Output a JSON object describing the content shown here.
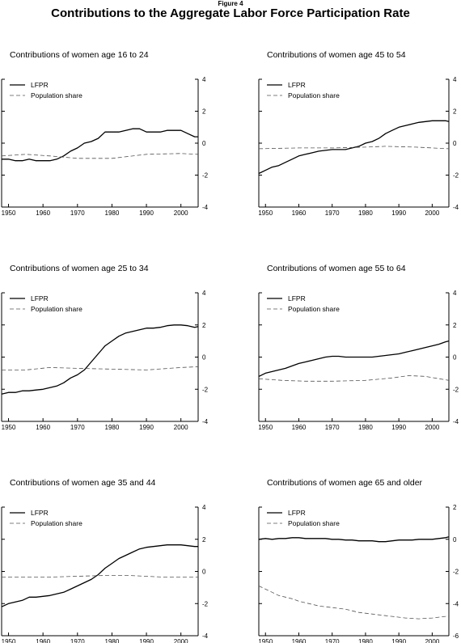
{
  "figure": {
    "label": "Figure 4",
    "title": "Contributions to the Aggregate Labor Force Participation Rate"
  },
  "chart_data": [
    {
      "type": "line",
      "title": "Contributions of women age 16 to 24",
      "ylim": [
        -4,
        4
      ],
      "yticks": [
        4,
        2,
        0,
        -2,
        -4
      ],
      "xlim": [
        1948,
        2005
      ],
      "xticks": [
        1950,
        1960,
        1970,
        1980,
        1990,
        2000
      ],
      "legend_position": "top-left",
      "grid": false,
      "series": [
        {
          "name": "LFPR",
          "style": "solid",
          "x": [
            1948,
            1950,
            1952,
            1954,
            1956,
            1958,
            1960,
            1962,
            1964,
            1966,
            1968,
            1970,
            1972,
            1974,
            1976,
            1978,
            1980,
            1982,
            1984,
            1986,
            1988,
            1990,
            1992,
            1994,
            1996,
            1998,
            2000,
            2002,
            2004,
            2005
          ],
          "y": [
            -1.0,
            -1.0,
            -1.1,
            -1.1,
            -1.0,
            -1.1,
            -1.1,
            -1.1,
            -1.0,
            -0.8,
            -0.5,
            -0.3,
            0.0,
            0.1,
            0.3,
            0.7,
            0.7,
            0.7,
            0.8,
            0.9,
            0.9,
            0.7,
            0.7,
            0.7,
            0.8,
            0.8,
            0.8,
            0.6,
            0.4,
            0.4
          ]
        },
        {
          "name": "Population share",
          "style": "dashed",
          "x": [
            1948,
            1955,
            1962,
            1970,
            1980,
            1990,
            2000,
            2005
          ],
          "y": [
            -0.8,
            -0.7,
            -0.8,
            -0.95,
            -0.95,
            -0.7,
            -0.65,
            -0.7
          ]
        }
      ]
    },
    {
      "type": "line",
      "title": "Contributions of women age 45 to 54",
      "ylim": [
        -4,
        4
      ],
      "yticks": [
        4,
        2,
        0,
        -2,
        -4
      ],
      "xlim": [
        1948,
        2005
      ],
      "xticks": [
        1950,
        1960,
        1970,
        1980,
        1990,
        2000
      ],
      "legend_position": "top-left",
      "grid": false,
      "series": [
        {
          "name": "LFPR",
          "style": "solid",
          "x": [
            1948,
            1950,
            1952,
            1954,
            1956,
            1958,
            1960,
            1962,
            1964,
            1966,
            1968,
            1970,
            1972,
            1974,
            1976,
            1978,
            1980,
            1982,
            1984,
            1986,
            1988,
            1990,
            1992,
            1994,
            1996,
            1998,
            2000,
            2002,
            2004,
            2005
          ],
          "y": [
            -1.9,
            -1.7,
            -1.5,
            -1.4,
            -1.2,
            -1.0,
            -0.8,
            -0.7,
            -0.6,
            -0.5,
            -0.45,
            -0.4,
            -0.4,
            -0.4,
            -0.3,
            -0.2,
            0.0,
            0.1,
            0.3,
            0.6,
            0.8,
            1.0,
            1.1,
            1.2,
            1.3,
            1.35,
            1.4,
            1.4,
            1.4,
            1.35
          ]
        },
        {
          "name": "Population share",
          "style": "dashed",
          "x": [
            1948,
            1960,
            1970,
            1980,
            1986,
            1995,
            2005
          ],
          "y": [
            -0.35,
            -0.3,
            -0.3,
            -0.25,
            -0.2,
            -0.25,
            -0.35
          ]
        }
      ]
    },
    {
      "type": "line",
      "title": "Contributions of women age 25 to 34",
      "ylim": [
        -4,
        4
      ],
      "yticks": [
        4,
        2,
        0,
        -2,
        -4
      ],
      "xlim": [
        1948,
        2005
      ],
      "xticks": [
        1950,
        1960,
        1970,
        1980,
        1990,
        2000
      ],
      "legend_position": "top-left",
      "grid": false,
      "series": [
        {
          "name": "LFPR",
          "style": "solid",
          "x": [
            1948,
            1950,
            1952,
            1954,
            1956,
            1958,
            1960,
            1962,
            1964,
            1966,
            1968,
            1970,
            1972,
            1974,
            1976,
            1978,
            1980,
            1982,
            1984,
            1986,
            1988,
            1990,
            1992,
            1994,
            1996,
            1998,
            2000,
            2002,
            2004,
            2005
          ],
          "y": [
            -2.3,
            -2.2,
            -2.2,
            -2.1,
            -2.1,
            -2.05,
            -2.0,
            -1.9,
            -1.8,
            -1.6,
            -1.3,
            -1.1,
            -0.8,
            -0.3,
            0.2,
            0.7,
            1.0,
            1.3,
            1.5,
            1.6,
            1.7,
            1.8,
            1.8,
            1.85,
            1.95,
            2.0,
            2.0,
            1.95,
            1.85,
            1.9
          ]
        },
        {
          "name": "Population share",
          "style": "dashed",
          "x": [
            1948,
            1955,
            1962,
            1970,
            1980,
            1990,
            2000,
            2005
          ],
          "y": [
            -0.8,
            -0.8,
            -0.65,
            -0.7,
            -0.75,
            -0.8,
            -0.65,
            -0.6
          ]
        }
      ]
    },
    {
      "type": "line",
      "title": "Contributions of women age 55 to 64",
      "ylim": [
        -4,
        4
      ],
      "yticks": [
        4,
        2,
        0,
        -2,
        -4
      ],
      "xlim": [
        1948,
        2005
      ],
      "xticks": [
        1950,
        1960,
        1970,
        1980,
        1990,
        2000
      ],
      "legend_position": "top-left",
      "grid": false,
      "series": [
        {
          "name": "LFPR",
          "style": "solid",
          "x": [
            1948,
            1950,
            1952,
            1954,
            1956,
            1958,
            1960,
            1962,
            1964,
            1966,
            1968,
            1970,
            1972,
            1974,
            1976,
            1978,
            1980,
            1982,
            1984,
            1986,
            1988,
            1990,
            1992,
            1994,
            1996,
            1998,
            2000,
            2002,
            2004,
            2005
          ],
          "y": [
            -1.2,
            -1.0,
            -0.9,
            -0.8,
            -0.7,
            -0.55,
            -0.4,
            -0.3,
            -0.2,
            -0.1,
            0.0,
            0.05,
            0.05,
            0.0,
            0.0,
            0.0,
            0.0,
            0.0,
            0.05,
            0.1,
            0.15,
            0.2,
            0.3,
            0.4,
            0.5,
            0.6,
            0.7,
            0.8,
            0.95,
            1.0
          ]
        },
        {
          "name": "Population share",
          "style": "dashed",
          "x": [
            1948,
            1955,
            1962,
            1970,
            1980,
            1988,
            1993,
            1998,
            2005
          ],
          "y": [
            -1.35,
            -1.45,
            -1.5,
            -1.5,
            -1.45,
            -1.3,
            -1.15,
            -1.2,
            -1.45
          ]
        }
      ]
    },
    {
      "type": "line",
      "title": "Contributions of women age 35 and 44",
      "ylim": [
        -4,
        4
      ],
      "yticks": [
        4,
        2,
        0,
        -2,
        -4
      ],
      "xlim": [
        1948,
        2005
      ],
      "xticks": [
        1950,
        1960,
        1970,
        1980,
        1990,
        2000
      ],
      "legend_position": "top-left",
      "grid": false,
      "series": [
        {
          "name": "LFPR",
          "style": "solid",
          "x": [
            1948,
            1950,
            1952,
            1954,
            1956,
            1958,
            1960,
            1962,
            1964,
            1966,
            1968,
            1970,
            1972,
            1974,
            1976,
            1978,
            1980,
            1982,
            1984,
            1986,
            1988,
            1990,
            1992,
            1994,
            1996,
            1998,
            2000,
            2002,
            2004,
            2005
          ],
          "y": [
            -2.2,
            -2.0,
            -1.9,
            -1.8,
            -1.6,
            -1.6,
            -1.55,
            -1.5,
            -1.4,
            -1.3,
            -1.1,
            -0.9,
            -0.7,
            -0.5,
            -0.2,
            0.2,
            0.5,
            0.8,
            1.0,
            1.2,
            1.4,
            1.5,
            1.55,
            1.6,
            1.65,
            1.65,
            1.65,
            1.6,
            1.55,
            1.55
          ]
        },
        {
          "name": "Population share",
          "style": "dashed",
          "x": [
            1948,
            1955,
            1962,
            1970,
            1978,
            1985,
            1995,
            2005
          ],
          "y": [
            -0.35,
            -0.35,
            -0.35,
            -0.3,
            -0.25,
            -0.25,
            -0.35,
            -0.35
          ]
        }
      ]
    },
    {
      "type": "line",
      "title": "Contributions of women age 65 and older",
      "ylim": [
        -6,
        2
      ],
      "yticks": [
        2,
        0,
        -2,
        -4,
        -6
      ],
      "xlim": [
        1948,
        2005
      ],
      "xticks": [
        1950,
        1960,
        1970,
        1980,
        1990,
        2000
      ],
      "legend_position": "top-left",
      "grid": false,
      "series": [
        {
          "name": "LFPR",
          "style": "solid",
          "x": [
            1948,
            1950,
            1952,
            1954,
            1956,
            1958,
            1960,
            1962,
            1964,
            1966,
            1968,
            1970,
            1972,
            1974,
            1976,
            1978,
            1980,
            1982,
            1984,
            1986,
            1988,
            1990,
            1992,
            1994,
            1996,
            1998,
            2000,
            2002,
            2004,
            2005
          ],
          "y": [
            0.0,
            0.05,
            0.0,
            0.05,
            0.05,
            0.1,
            0.1,
            0.05,
            0.05,
            0.05,
            0.05,
            0.0,
            0.0,
            -0.05,
            -0.05,
            -0.1,
            -0.1,
            -0.1,
            -0.15,
            -0.15,
            -0.1,
            -0.05,
            -0.05,
            -0.05,
            0.0,
            0.0,
            0.0,
            0.05,
            0.1,
            0.15
          ]
        },
        {
          "name": "Population share",
          "style": "dashed",
          "x": [
            1948,
            1950,
            1952,
            1954,
            1956,
            1958,
            1960,
            1962,
            1964,
            1966,
            1968,
            1970,
            1972,
            1974,
            1976,
            1978,
            1980,
            1982,
            1984,
            1986,
            1988,
            1990,
            1992,
            1994,
            1996,
            1998,
            2000,
            2002,
            2004,
            2005
          ],
          "y": [
            -2.9,
            -3.1,
            -3.3,
            -3.5,
            -3.6,
            -3.7,
            -3.85,
            -3.95,
            -4.05,
            -4.15,
            -4.2,
            -4.25,
            -4.3,
            -4.35,
            -4.45,
            -4.55,
            -4.6,
            -4.65,
            -4.7,
            -4.75,
            -4.8,
            -4.85,
            -4.9,
            -4.92,
            -4.95,
            -4.92,
            -4.9,
            -4.85,
            -4.8,
            -4.75
          ]
        }
      ]
    }
  ]
}
